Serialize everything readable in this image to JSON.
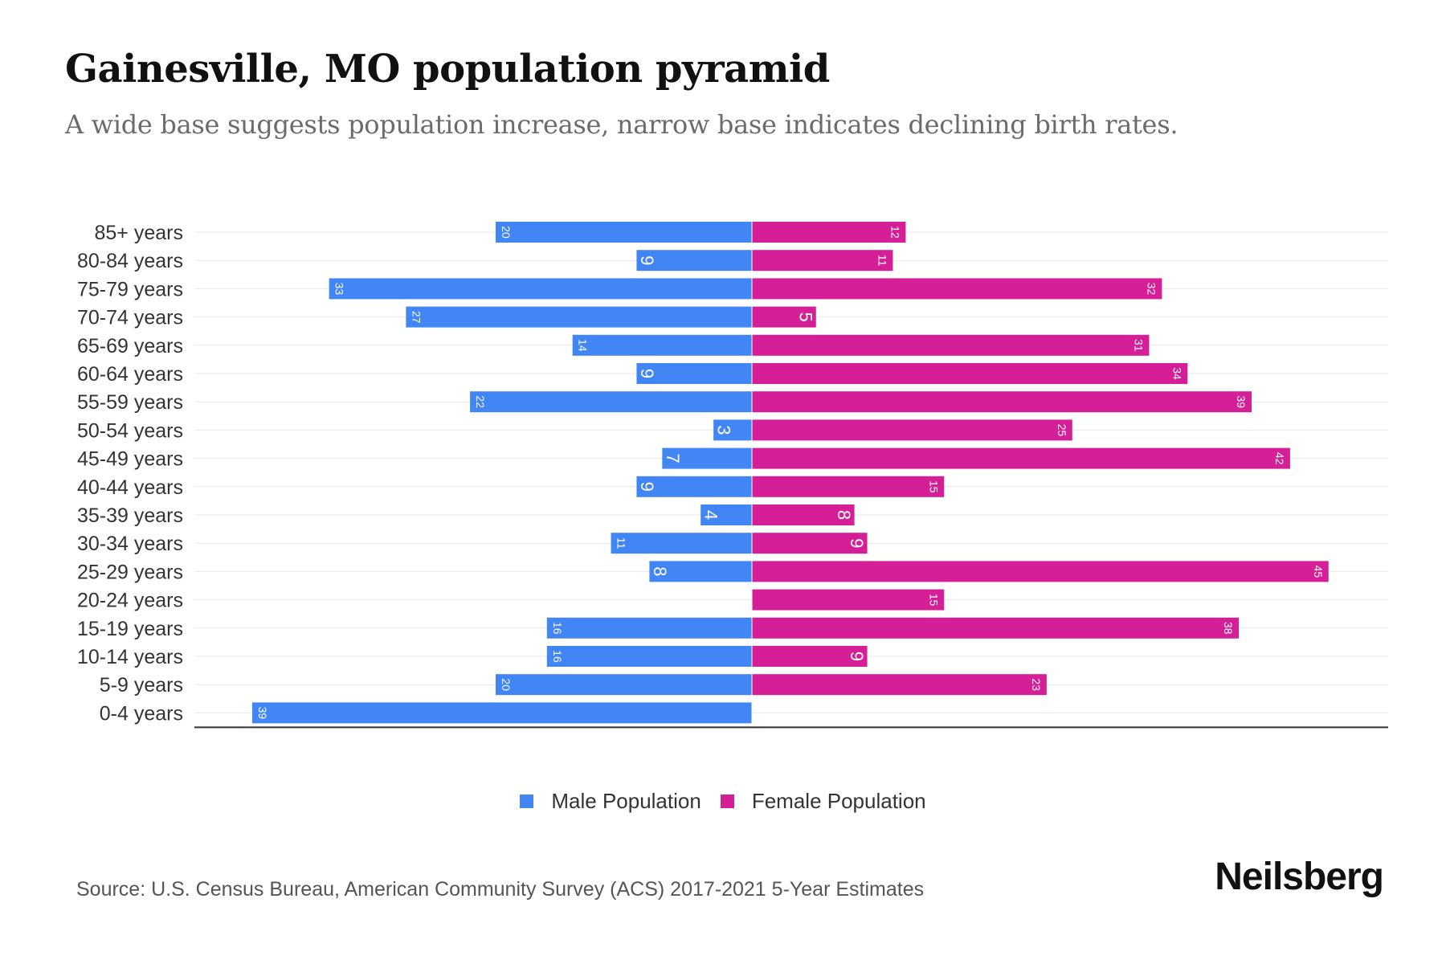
{
  "title": "Gainesville, MO population pyramid",
  "subtitle": "A wide base suggests population increase, narrow base indicates declining birth rates.",
  "source": "Source: U.S. Census Bureau, American Community Survey (ACS) 2017-2021 5-Year Estimates",
  "brand": "Neilsberg",
  "colors": {
    "male": "#4285f4",
    "female": "#d41f96"
  },
  "chart_data": {
    "type": "bar",
    "orientation": "horizontal-pyramid",
    "categories": [
      "85+ years",
      "80-84 years",
      "75-79 years",
      "70-74 years",
      "65-69 years",
      "60-64 years",
      "55-59 years",
      "50-54 years",
      "45-49 years",
      "40-44 years",
      "35-39 years",
      "30-34 years",
      "25-29 years",
      "20-24 years",
      "15-19 years",
      "10-14 years",
      "5-9 years",
      "0-4 years"
    ],
    "series": [
      {
        "name": "Male Population",
        "values": [
          20,
          9,
          33,
          27,
          14,
          9,
          22,
          3,
          7,
          9,
          4,
          11,
          8,
          0,
          16,
          16,
          20,
          39
        ]
      },
      {
        "name": "Female Population",
        "values": [
          12,
          11,
          32,
          5,
          31,
          34,
          39,
          25,
          42,
          15,
          8,
          9,
          45,
          15,
          38,
          9,
          23,
          0
        ]
      }
    ],
    "grid": true,
    "legend_position": "bottom"
  }
}
